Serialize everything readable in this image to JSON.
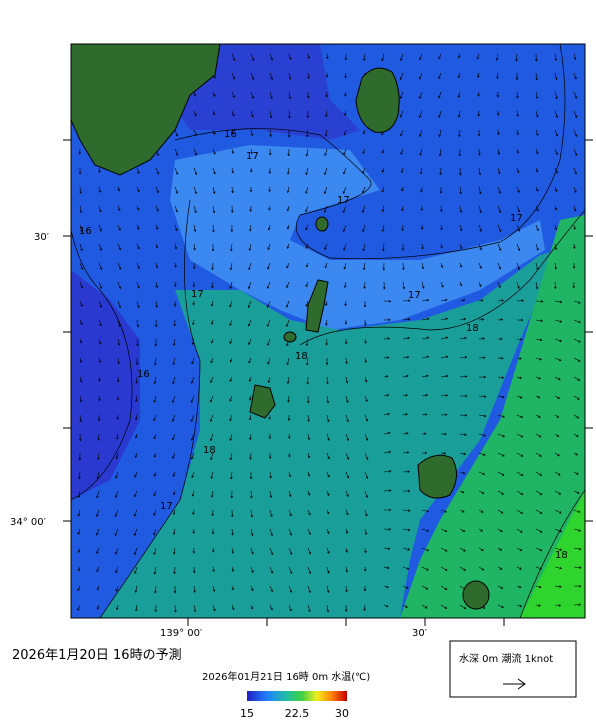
{
  "title": "2026年1月20日 16時の予測",
  "subtitle": "2026年01月21日 16時 0m 水温(℃)",
  "colorbar": {
    "labels": [
      "15",
      "22.5",
      "30"
    ]
  },
  "axes": {
    "y_labels": [
      "30′",
      "34° 00′"
    ],
    "x_labels": [
      "139° 00′",
      "30′"
    ]
  },
  "contour_labels": [
    "16",
    "17",
    "17",
    "17",
    "16",
    "17",
    "17",
    "18",
    "18",
    "16",
    "18",
    "17",
    "18"
  ],
  "legend": {
    "text": "水深 0m 潮流 1knot"
  }
}
